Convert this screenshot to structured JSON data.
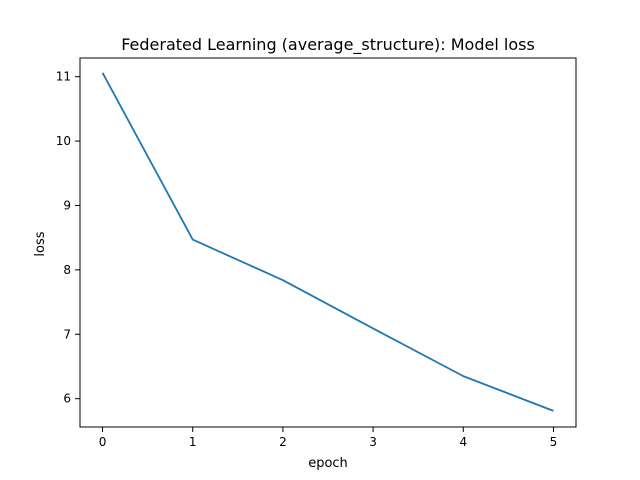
{
  "chart_data": {
    "type": "line",
    "title": "Federated Learning (average_structure): Model loss",
    "xlabel": "epoch",
    "ylabel": "loss",
    "xlim": [
      -0.25,
      5.25
    ],
    "ylim": [
      5.56,
      11.29
    ],
    "xticks": [
      0,
      1,
      2,
      3,
      4,
      5
    ],
    "yticks": [
      6,
      7,
      8,
      9,
      10,
      11
    ],
    "grid": false,
    "series": [
      {
        "x": [
          0,
          1,
          2,
          3,
          4,
          5
        ],
        "y": [
          11.06,
          8.47,
          7.84,
          7.09,
          6.35,
          5.81
        ],
        "color": "#1f77b4"
      }
    ]
  }
}
